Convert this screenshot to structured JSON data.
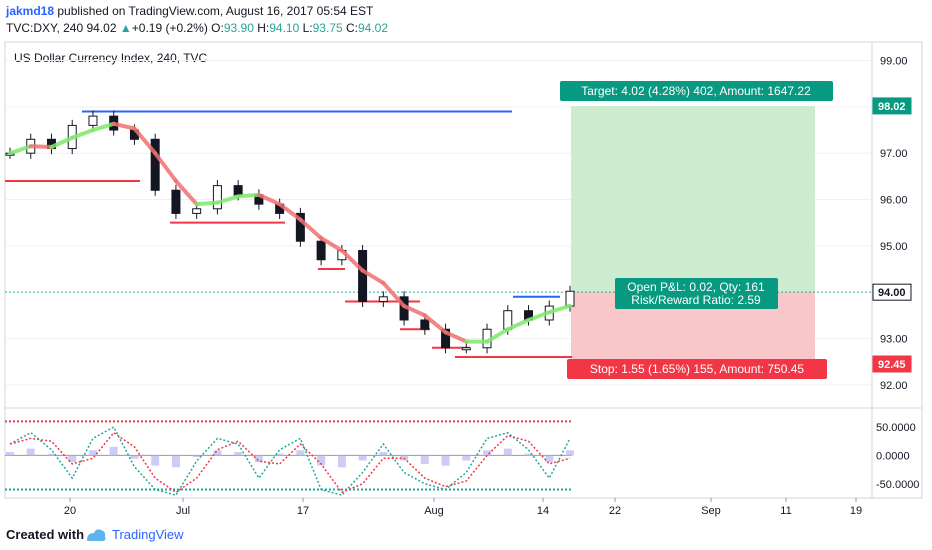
{
  "header": {
    "username": "jakmd18",
    "published_text": "published on TradingView.com, August 16, 2017 05:54 EST",
    "symbol": "TVC:DXY, 240",
    "last": "94.02",
    "change_arrow": "▲",
    "change": "+0.19 (+0.2%)",
    "o_label": "O:",
    "o_value": "93.90",
    "h_label": "H:",
    "h_value": "94.10",
    "l_label": "L:",
    "l_value": "93.75",
    "c_label": "C:",
    "c_value": "94.02"
  },
  "chart_title": "US Dollar Currency Index, 240, TVC",
  "position_tool": {
    "target_label": "Target: 4.02 (4.28%) 402, Amount: 1647.22",
    "stop_label": "Stop: 1.55 (1.65%) 155, Amount: 750.45",
    "pnl_label": "Open P&L: 0.02, Qty: 161",
    "rr_label": "Risk/Reward Ratio: 2.59",
    "target_price": 98.02,
    "entry_price": 94.0,
    "stop_price": 92.45
  },
  "price_axis": {
    "ticks": [
      "99.00",
      "98.00",
      "97.00",
      "96.00",
      "95.00",
      "93.00",
      "92.00"
    ],
    "tick_values": [
      99,
      98,
      97,
      96,
      95,
      93,
      92
    ],
    "badges": [
      {
        "label": "98.02",
        "value": 98.02,
        "color": "#089981"
      },
      {
        "label": "94.00",
        "value": 94.0,
        "color": "#ffffff"
      },
      {
        "label": "92.45",
        "value": 92.45,
        "color": "#f23645"
      }
    ]
  },
  "osc_axis": {
    "ticks": [
      "50.0000",
      "0.0000",
      "-50.0000"
    ],
    "tick_values": [
      50,
      0,
      -50
    ]
  },
  "time_axis": {
    "ticks": [
      "20",
      "Jul",
      "17",
      "Aug",
      "14",
      "22",
      "Sep",
      "11",
      "19"
    ]
  },
  "footer": {
    "created_with": "Created with",
    "brand": "TradingView"
  },
  "chart_data": {
    "type": "line",
    "title": "US Dollar Currency Index, 240, TVC",
    "ylim": [
      91.5,
      99.4
    ],
    "x_labels": [
      "20",
      "Jul",
      "17",
      "Aug",
      "14",
      "22",
      "Sep",
      "11",
      "19"
    ],
    "series": [
      {
        "values": [
          97.0,
          97.3,
          97.1,
          97.6,
          97.8,
          97.5,
          97.3,
          96.2,
          95.7,
          95.8,
          96.3,
          96.1,
          95.9,
          95.7,
          95.1,
          94.7,
          94.9,
          93.8,
          93.9,
          93.4,
          93.2,
          92.8,
          92.8,
          93.2,
          93.6,
          93.4,
          93.7,
          94.02
        ]
      }
    ],
    "annotations": {
      "resistance": [
        97.9,
        93.9
      ],
      "support": [
        96.4,
        95.5,
        94.5,
        93.8,
        93.2,
        92.8,
        92.6
      ]
    },
    "oscillator": {
      "ylim": [
        -75,
        80
      ],
      "upper_band": 60,
      "lower_band": -60,
      "values": [
        20,
        40,
        10,
        -40,
        30,
        50,
        -20,
        -60,
        -70,
        -10,
        30,
        20,
        -40,
        10,
        30,
        -60,
        -70,
        -30,
        20,
        -30,
        -50,
        -60,
        -30,
        30,
        40,
        10,
        -40,
        30
      ]
    }
  }
}
